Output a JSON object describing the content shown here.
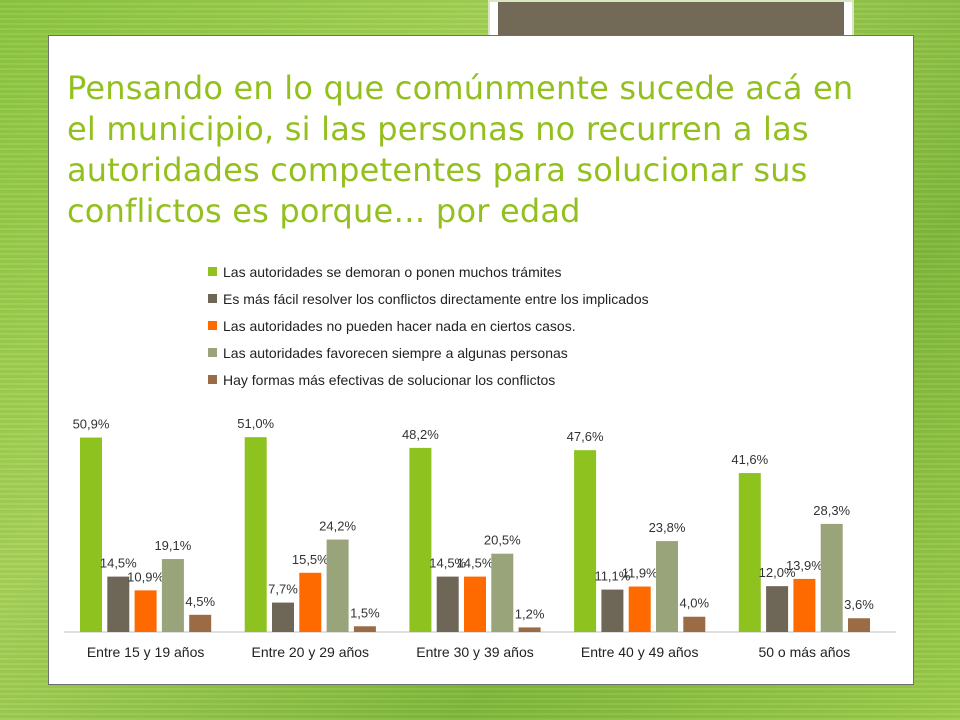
{
  "slide": {
    "title": "Pensando en lo que comúnmente sucede acá en el municipio, si las personas no recurren a las autoridades competentes para solucionar sus conflictos es porque… por edad"
  },
  "chart_data": {
    "type": "bar",
    "categories": [
      "Entre 15 y 19 años",
      "Entre 20 y 29 años",
      "Entre 30 y 39 años",
      "Entre 40 y 49 años",
      "50 o más años"
    ],
    "series": [
      {
        "name": "Las autoridades se demoran o ponen muchos trámites",
        "color": "#8dc21f",
        "values": [
          50.9,
          51.0,
          48.2,
          47.6,
          41.6
        ],
        "labels": [
          "50,9%",
          "51,0%",
          "48,2%",
          "47,6%",
          "41,6%"
        ]
      },
      {
        "name": "Es más fácil resolver los conflictos directamente entre los implicados",
        "color": "#6e6758",
        "values": [
          14.5,
          7.7,
          14.5,
          11.1,
          12.0
        ],
        "labels": [
          "14,5%",
          "7,7%",
          "14,5%",
          "11,1%",
          "12,0%"
        ]
      },
      {
        "name": "Las autoridades no pueden hacer nada en ciertos casos.",
        "color": "#ff6a00",
        "values": [
          10.9,
          15.5,
          14.5,
          11.9,
          13.9
        ],
        "labels": [
          "10,9%",
          "15,5%",
          "14,5%",
          "11,9%",
          "13,9%"
        ]
      },
      {
        "name": "Las autoridades favorecen siempre a algunas personas",
        "color": "#9aa47a",
        "values": [
          19.1,
          24.2,
          20.5,
          23.8,
          28.3
        ],
        "labels": [
          "19,1%",
          "24,2%",
          "20,5%",
          "23,8%",
          "28,3%"
        ]
      },
      {
        "name": "Hay formas más efectivas de solucionar los conflictos",
        "color": "#9b6b45",
        "values": [
          4.5,
          1.5,
          1.2,
          4.0,
          3.6
        ],
        "labels": [
          "4,5%",
          "1,5%",
          "1,2%",
          "4,0%",
          "3,6%"
        ]
      }
    ],
    "legend": "top"
  }
}
